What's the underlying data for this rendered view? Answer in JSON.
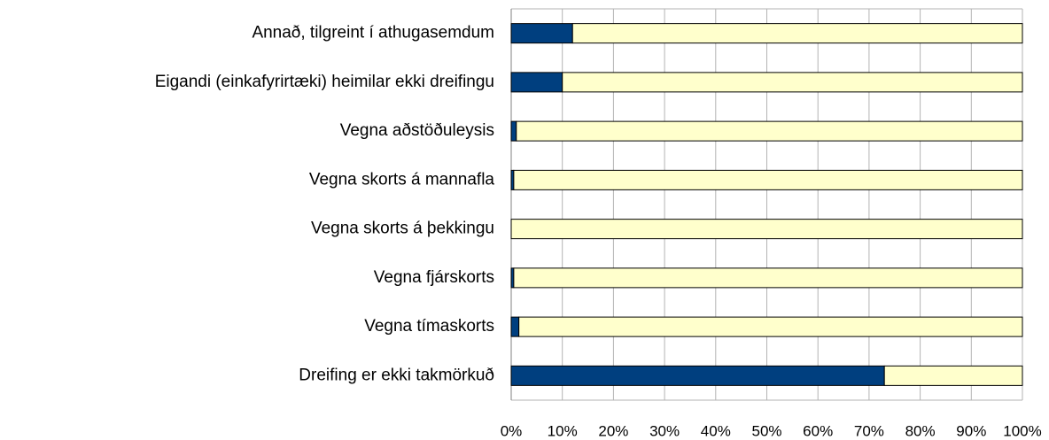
{
  "chart_data": {
    "type": "bar",
    "orientation": "horizontal",
    "stacked": true,
    "categories": [
      "Annað, tilgreint í athugasemdum",
      "Eigandi (einkafyrirtæki) heimilar ekki dreifingu",
      "Vegna aðstöðuleysis",
      "Vegna skorts á mannafla",
      "Vegna skorts á þekkingu",
      "Vegna fjárskorts",
      "Vegna tímaskorts",
      "Dreifing er ekki takmörkuð"
    ],
    "series": [
      {
        "color": "#003f7f",
        "values": [
          12,
          10,
          1,
          0.5,
          0,
          0.5,
          1.5,
          73
        ]
      },
      {
        "color": "#ffffcc",
        "values": [
          88,
          90,
          99,
          99.5,
          100,
          99.5,
          98.5,
          27
        ]
      }
    ],
    "xlim": [
      0,
      100
    ],
    "xticks": [
      {
        "value": 0,
        "label": "0%"
      },
      {
        "value": 10,
        "label": "10%"
      },
      {
        "value": 20,
        "label": "20%"
      },
      {
        "value": 30,
        "label": "30%"
      },
      {
        "value": 40,
        "label": "40%"
      },
      {
        "value": 50,
        "label": "50%"
      },
      {
        "value": 60,
        "label": "60%"
      },
      {
        "value": 70,
        "label": "70%"
      },
      {
        "value": 80,
        "label": "80%"
      },
      {
        "value": 90,
        "label": "90%"
      },
      {
        "value": 100,
        "label": "100%"
      }
    ],
    "grid": true
  }
}
